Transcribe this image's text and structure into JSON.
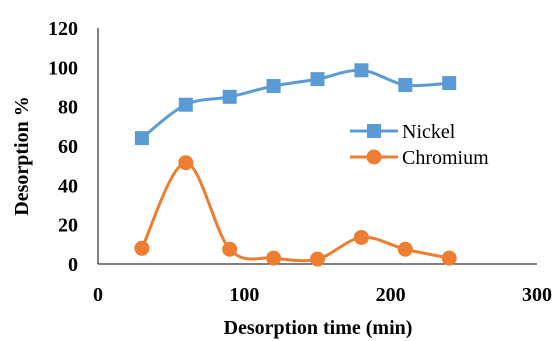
{
  "chart_data": {
    "type": "line",
    "xlabel": "Desorption time  (min)",
    "ylabel": "Desorption %",
    "xlim": [
      0,
      300
    ],
    "ylim": [
      0,
      120
    ],
    "xticks": [
      "0",
      "100",
      "200",
      "300"
    ],
    "yticks": [
      "0",
      "20",
      "40",
      "60",
      "80",
      "100",
      "120"
    ],
    "grid": false,
    "smooth": true,
    "legend_position": "right",
    "series": [
      {
        "name": "Nickel",
        "color": "#5B9BD5",
        "marker": "square",
        "x": [
          30,
          60,
          90,
          120,
          150,
          180,
          210,
          240
        ],
        "y": [
          64,
          81,
          85,
          90.5,
          94,
          98.5,
          91,
          92
        ]
      },
      {
        "name": "Chromium",
        "color": "#ED7D31",
        "marker": "circle",
        "x": [
          30,
          60,
          90,
          120,
          150,
          180,
          210,
          240
        ],
        "y": [
          8,
          51.5,
          7.5,
          3,
          2.5,
          13.5,
          7.5,
          3
        ]
      }
    ]
  }
}
